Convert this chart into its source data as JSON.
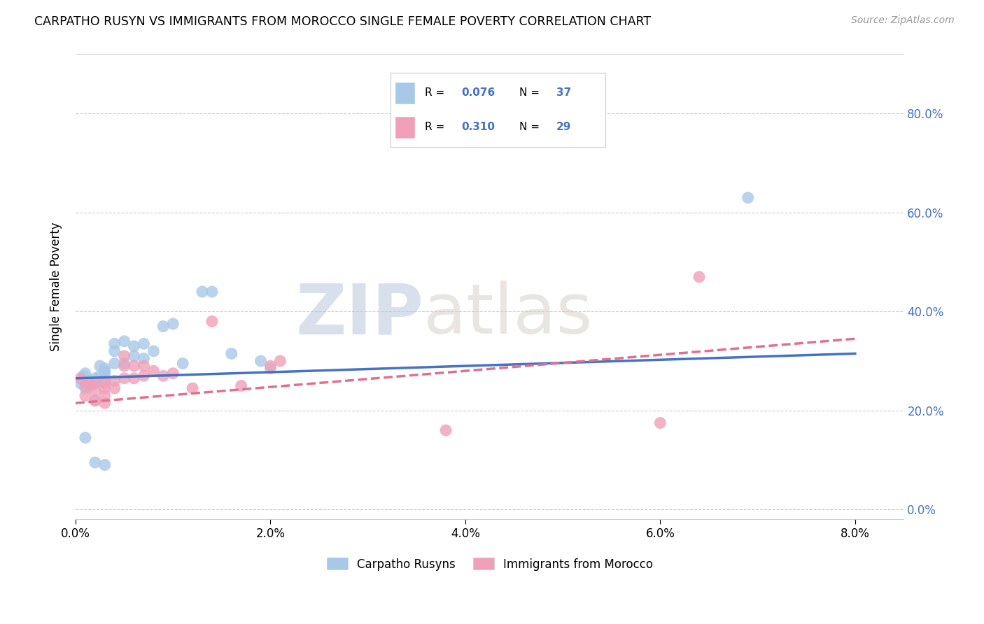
{
  "title": "CARPATHO RUSYN VS IMMIGRANTS FROM MOROCCO SINGLE FEMALE POVERTY CORRELATION CHART",
  "source": "Source: ZipAtlas.com",
  "xlim": [
    0.0,
    0.085
  ],
  "ylim": [
    -0.02,
    0.92
  ],
  "ylabel": "Single Female Poverty",
  "legend_label1": "Carpatho Rusyns",
  "legend_label2": "Immigrants from Morocco",
  "blue_color": "#a8c8e8",
  "pink_color": "#f0a0b8",
  "line_blue": "#4472c4",
  "line_pink": "#e07090",
  "watermark_zip": "ZIP",
  "watermark_atlas": "atlas",
  "blue_x": [
    0.0005,
    0.0008,
    0.001,
    0.001,
    0.0015,
    0.0015,
    0.002,
    0.002,
    0.002,
    0.0025,
    0.0025,
    0.003,
    0.003,
    0.003,
    0.003,
    0.004,
    0.004,
    0.004,
    0.005,
    0.005,
    0.006,
    0.006,
    0.007,
    0.007,
    0.008,
    0.009,
    0.01,
    0.011,
    0.013,
    0.014,
    0.016,
    0.019,
    0.02,
    0.001,
    0.002,
    0.003,
    0.069
  ],
  "blue_y": [
    0.255,
    0.27,
    0.275,
    0.245,
    0.26,
    0.25,
    0.265,
    0.255,
    0.22,
    0.29,
    0.27,
    0.285,
    0.28,
    0.275,
    0.26,
    0.295,
    0.32,
    0.335,
    0.34,
    0.295,
    0.33,
    0.31,
    0.335,
    0.305,
    0.32,
    0.37,
    0.375,
    0.295,
    0.44,
    0.44,
    0.315,
    0.3,
    0.285,
    0.145,
    0.095,
    0.09,
    0.63
  ],
  "pink_x": [
    0.0005,
    0.001,
    0.001,
    0.0015,
    0.002,
    0.002,
    0.002,
    0.003,
    0.003,
    0.003,
    0.003,
    0.004,
    0.004,
    0.005,
    0.005,
    0.005,
    0.006,
    0.006,
    0.007,
    0.007,
    0.008,
    0.009,
    0.01,
    0.012,
    0.014,
    0.017,
    0.02,
    0.021,
    0.038,
    0.06,
    0.064
  ],
  "pink_y": [
    0.265,
    0.25,
    0.23,
    0.255,
    0.255,
    0.24,
    0.22,
    0.255,
    0.245,
    0.23,
    0.215,
    0.26,
    0.245,
    0.265,
    0.29,
    0.31,
    0.29,
    0.265,
    0.29,
    0.27,
    0.28,
    0.27,
    0.275,
    0.245,
    0.38,
    0.25,
    0.29,
    0.3,
    0.16,
    0.175,
    0.47
  ],
  "blue_line_x0": 0.0,
  "blue_line_y0": 0.265,
  "blue_line_x1": 0.08,
  "blue_line_y1": 0.315,
  "pink_line_x0": 0.0,
  "pink_line_y0": 0.215,
  "pink_line_x1": 0.08,
  "pink_line_y1": 0.345
}
